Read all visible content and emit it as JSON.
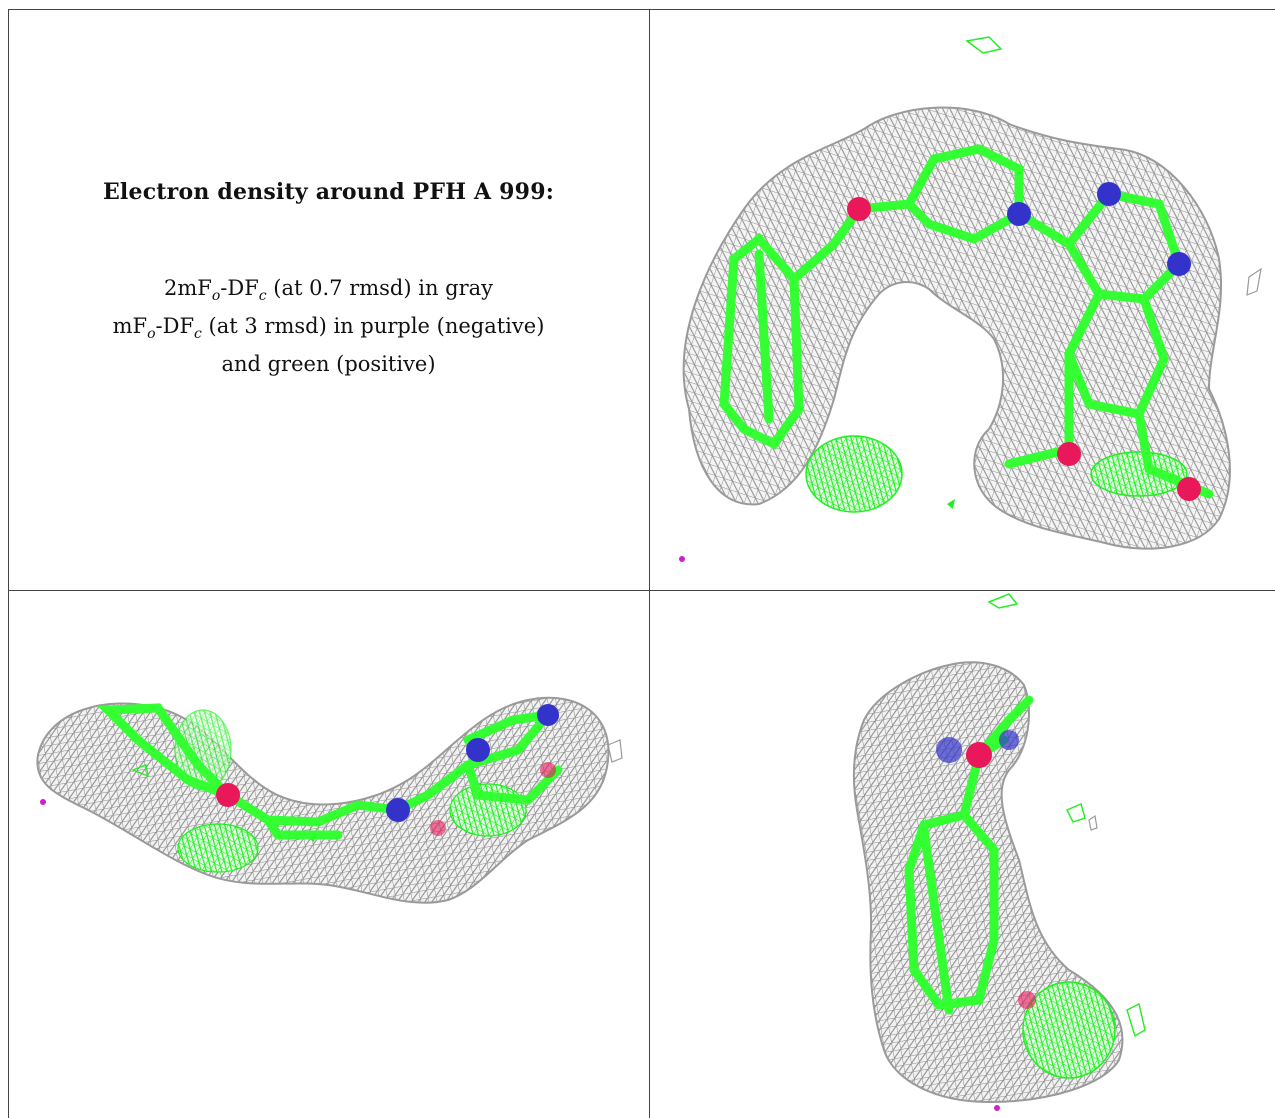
{
  "legend": {
    "title": "Electron density around PFH A 999:",
    "line1": {
      "prefix": "2mF",
      "sub1": "o",
      "mid": "-DF",
      "sub2": "c",
      "suffix": " (at 0.7 rmsd) in gray"
    },
    "line2": {
      "prefix": "mF",
      "sub1": "o",
      "mid": "-DF",
      "sub2": "c",
      "suffix": " (at 3 rmsd) in purple (negative)"
    },
    "line3": "and green (positive)"
  },
  "colors": {
    "mesh_gray": "#8f8f8f",
    "carbon_green": "#33ff33",
    "nitrogen_blue": "#3333cc",
    "oxygen_red": "#e8185a",
    "positive_green": "#22ee22",
    "negative_purple": "#cc22cc",
    "rule": "#444444"
  },
  "panels": [
    {
      "id": "top-right",
      "view": "front view of ligand with density mesh"
    },
    {
      "id": "bottom-left",
      "view": "side view of ligand with density mesh"
    },
    {
      "id": "bottom-right",
      "view": "end-on view of ligand with density mesh"
    }
  ]
}
